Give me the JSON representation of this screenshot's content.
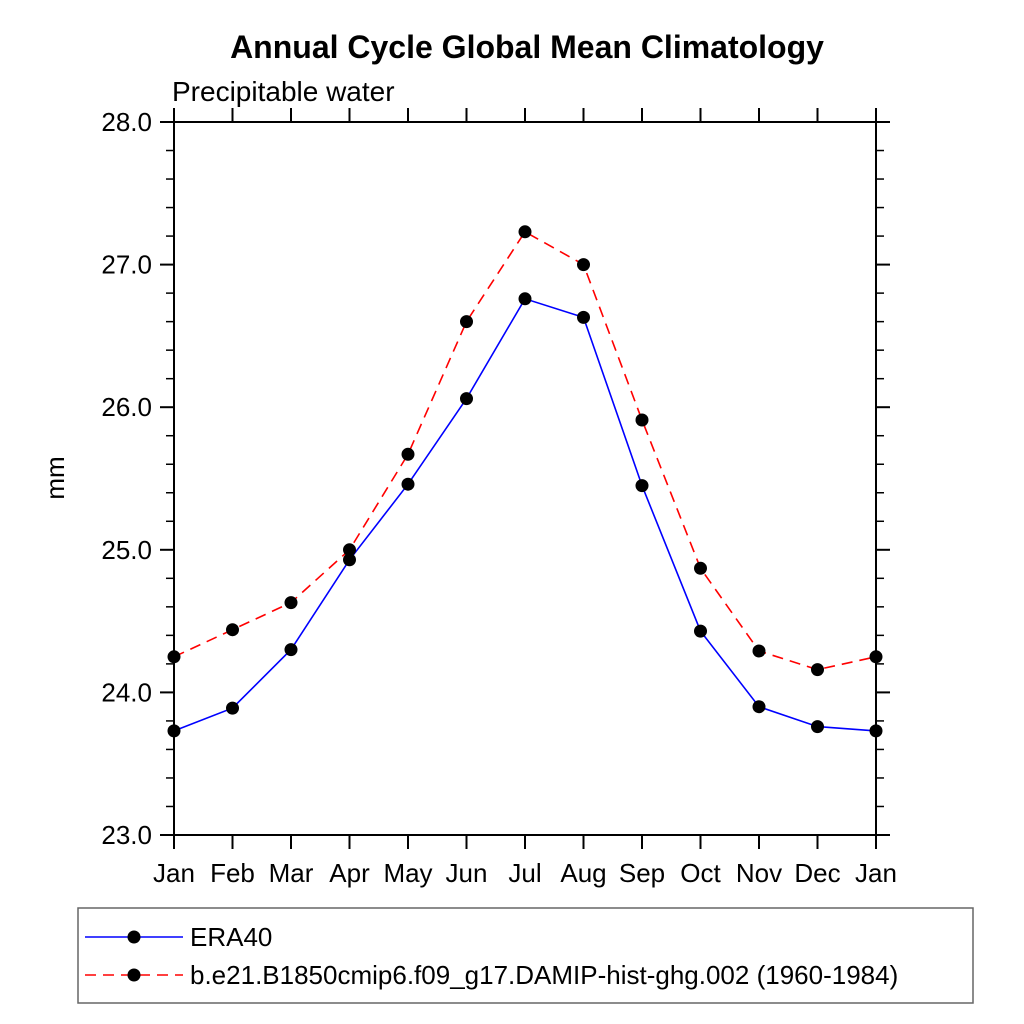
{
  "chart_data": {
    "type": "line",
    "title": "Annual Cycle Global Mean Climatology",
    "subtitle": "Precipitable water",
    "ylabel": "mm",
    "ylim": [
      23.0,
      28.0
    ],
    "ytick_major_interval": 1.0,
    "ytick_minor_interval": 0.2,
    "ytick_labels": [
      "23.0",
      "24.0",
      "25.0",
      "26.0",
      "27.0",
      "28.0"
    ],
    "grid": false,
    "legend_position": "bottom-outside-boxed",
    "background_color": "#ffffff",
    "axis_color": "#000000",
    "marker_color": "#000000",
    "categories": [
      "Jan",
      "Feb",
      "Mar",
      "Apr",
      "May",
      "Jun",
      "Jul",
      "Aug",
      "Sep",
      "Oct",
      "Nov",
      "Dec",
      "Jan"
    ],
    "series": [
      {
        "name": "ERA40",
        "color": "#0000ff",
        "line_style": "solid",
        "marker": "filled-circle",
        "values": [
          23.73,
          23.89,
          24.3,
          24.93,
          25.46,
          26.06,
          26.76,
          26.63,
          25.45,
          24.43,
          23.9,
          23.76,
          23.73
        ]
      },
      {
        "name": "b.e21.B1850cmip6.f09_g17.DAMIP-hist-ghg.002 (1960-1984)",
        "color": "#ff0000",
        "line_style": "dashed",
        "marker": "filled-circle",
        "values": [
          24.25,
          24.44,
          24.63,
          25.0,
          25.67,
          26.6,
          27.23,
          27.0,
          25.91,
          24.87,
          24.29,
          24.16,
          24.25
        ]
      }
    ]
  }
}
